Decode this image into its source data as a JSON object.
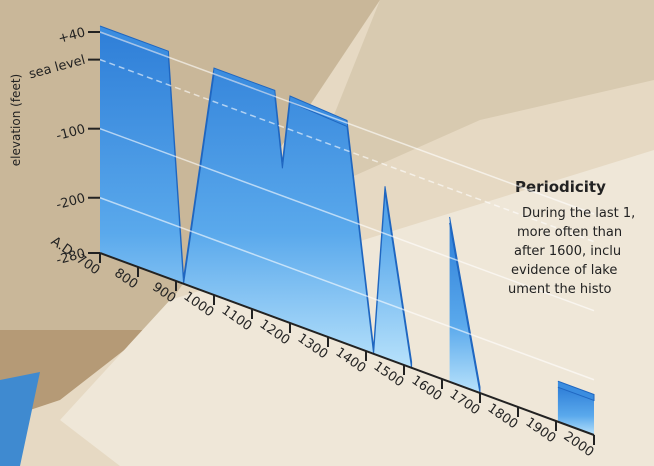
{
  "chart_data": {
    "type": "area",
    "y_label": "elevation (feet)",
    "x": [
      700,
      880,
      920,
      1000,
      1160,
      1180,
      1200,
      1350,
      1420,
      1450,
      1520,
      1560,
      1620,
      1700,
      1800,
      1905,
      2000
    ],
    "series": [
      {
        "color": "#3b8de0",
        "values": [
          40,
          40,
          -280,
          40,
          40,
          -60,
          40,
          35,
          -280,
          -40,
          -280,
          null,
          -50,
          -280,
          null,
          -230,
          -230
        ]
      }
    ],
    "xlim": [
      700,
      2000
    ],
    "ylim": [
      -280,
      40
    ],
    "xticks": [
      {
        "value": 700,
        "label": "A.D. 700"
      },
      800,
      900,
      1000,
      1100,
      1200,
      1300,
      1400,
      1500,
      1600,
      1700,
      1800,
      1900,
      2000
    ],
    "yticks": [
      {
        "value": 40,
        "label": "+40"
      },
      {
        "value": 0,
        "label": "sea level"
      },
      -100,
      -200,
      -280
    ],
    "grid": true,
    "annotation_title": "Periodicity",
    "annotation_lines": [
      "During the last 1,",
      "more often than",
      "after 1600, inclu",
      "evidence of lake",
      "ument the histo"
    ]
  }
}
